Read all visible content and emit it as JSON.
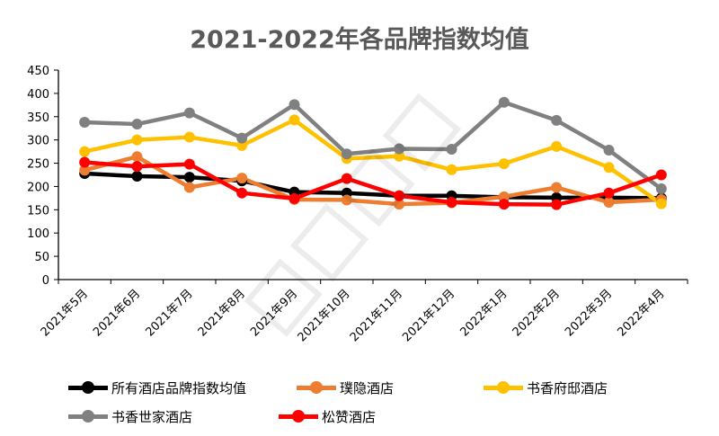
{
  "chart_data": {
    "type": "line",
    "title": "2021-2022年各品牌指数均值",
    "categories": [
      "2021年5月",
      "2021年6月",
      "2021年7月",
      "2021年8月",
      "2021年9月",
      "2021年10月",
      "2021年11月",
      "2021年12月",
      "2022年1月",
      "2022年2月",
      "2022年3月",
      "2022年4月"
    ],
    "yticks": [
      "0",
      "50",
      "100",
      "150",
      "200",
      "250",
      "300",
      "350",
      "400",
      "450"
    ],
    "ylim": [
      0,
      450
    ],
    "series": [
      {
        "name": "所有酒店品牌指数均值",
        "color": "#000000",
        "values": [
          228,
          222,
          220,
          212,
          188,
          186,
          180,
          180,
          177,
          176,
          176,
          175
        ]
      },
      {
        "name": "璞隐酒店",
        "color": "#ED7D31",
        "values": [
          235,
          264,
          198,
          218,
          172,
          171,
          162,
          165,
          178,
          198,
          166,
          172
        ]
      },
      {
        "name": "书香府邸酒店",
        "color": "#FFC000",
        "values": [
          275,
          300,
          306,
          288,
          343,
          260,
          265,
          236,
          249,
          286,
          241,
          163
        ]
      },
      {
        "name": "书香世家酒店",
        "color": "#808080",
        "values": [
          338,
          334,
          358,
          304,
          376,
          270,
          281,
          280,
          381,
          342,
          278,
          195
        ]
      },
      {
        "name": "松赞酒店",
        "color": "#FF0000",
        "values": [
          252,
          243,
          248,
          186,
          174,
          217,
          180,
          166,
          162,
          161,
          186,
          225
        ]
      }
    ],
    "grid": false,
    "legend_position": "bottom"
  }
}
